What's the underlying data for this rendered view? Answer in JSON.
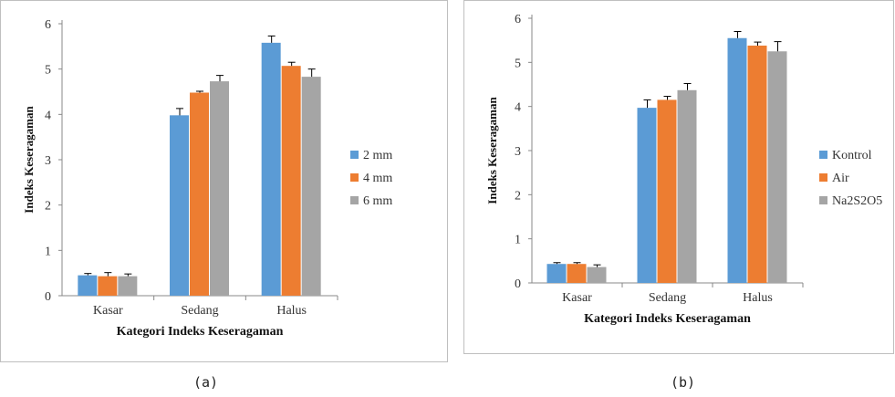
{
  "chart_data": [
    {
      "type": "bar",
      "panel_label": "(a)",
      "xlabel": "Kategori Indeks Keseragaman",
      "ylabel": "Indeks Keseragaman",
      "ylim": [
        0,
        6
      ],
      "yticks": [
        "0",
        "1",
        "2",
        "3",
        "4",
        "5",
        "6"
      ],
      "categories": [
        "Kasar",
        "Sedang",
        "Halus"
      ],
      "legend_position": "right",
      "grid": false,
      "series": [
        {
          "name": "2 mm",
          "color": "#5b9bd5",
          "values": [
            0.45,
            3.98,
            5.58
          ],
          "errors": [
            0.04,
            0.15,
            0.15
          ]
        },
        {
          "name": "4 mm",
          "color": "#ed7d31",
          "values": [
            0.43,
            4.48,
            5.07
          ],
          "errors": [
            0.08,
            0.03,
            0.08
          ]
        },
        {
          "name": "6 mm",
          "color": "#a5a5a5",
          "values": [
            0.43,
            4.73,
            4.83
          ],
          "errors": [
            0.05,
            0.13,
            0.17
          ]
        }
      ]
    },
    {
      "type": "bar",
      "panel_label": "(b)",
      "xlabel": "Kategori Indeks Keseragaman",
      "ylabel": "Indeks Keseragaman",
      "ylim": [
        0,
        6
      ],
      "yticks": [
        "0",
        "1",
        "2",
        "3",
        "4",
        "5",
        "6"
      ],
      "categories": [
        "Kasar",
        "Sedang",
        "Halus"
      ],
      "legend_position": "right",
      "grid": false,
      "series": [
        {
          "name": "Kontrol",
          "color": "#5b9bd5",
          "values": [
            0.43,
            3.97,
            5.55
          ],
          "errors": [
            0.03,
            0.18,
            0.15
          ]
        },
        {
          "name": "Air",
          "color": "#ed7d31",
          "values": [
            0.43,
            4.15,
            5.38
          ],
          "errors": [
            0.03,
            0.08,
            0.08
          ]
        },
        {
          "name": "Na2S2O5",
          "color": "#a5a5a5",
          "values": [
            0.36,
            4.37,
            5.25
          ],
          "errors": [
            0.05,
            0.15,
            0.22
          ]
        }
      ]
    }
  ]
}
